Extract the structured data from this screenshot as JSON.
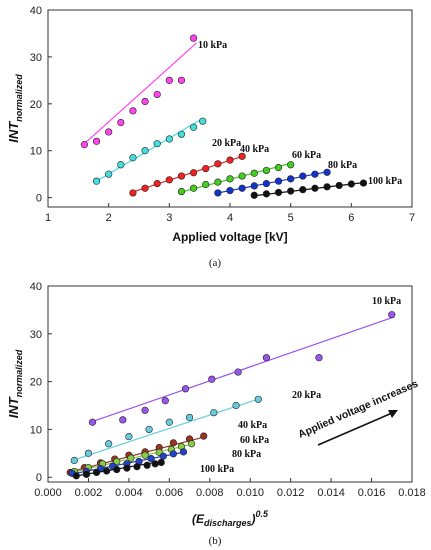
{
  "chart_data": [
    {
      "type": "scatter",
      "caption": "(a)",
      "xlabel": "Applied voltage [kV]",
      "ylabel_main": "INT",
      "ylabel_sub": "normalized",
      "xlim": [
        1,
        7
      ],
      "ylim": [
        -2,
        40
      ],
      "xticks": [
        "1",
        "2",
        "3",
        "4",
        "5",
        "6",
        "7"
      ],
      "yticks": [
        "0",
        "10",
        "20",
        "30",
        "40"
      ],
      "series": [
        {
          "name": "10 kPa",
          "color": "#ff44ee",
          "fit": [
            [
              1.6,
              11.5
            ],
            [
              3.45,
              33
            ]
          ],
          "x": [
            1.6,
            1.8,
            2.0,
            2.2,
            2.4,
            2.6,
            2.8,
            3.0,
            3.2,
            3.4
          ],
          "y": [
            11.3,
            12,
            14,
            16,
            18.5,
            20.5,
            22,
            25,
            25,
            34
          ]
        },
        {
          "name": "20 kPa",
          "color": "#44dddd",
          "fit": [
            [
              1.8,
              3.5
            ],
            [
              3.5,
              16.5
            ]
          ],
          "x": [
            1.8,
            2.0,
            2.2,
            2.4,
            2.6,
            2.8,
            3.0,
            3.2,
            3.4,
            3.55
          ],
          "y": [
            3.5,
            5,
            7,
            8.5,
            10,
            11.5,
            12.5,
            13.5,
            15,
            16.3
          ]
        },
        {
          "name": "40 kPa",
          "color": "#ee2222",
          "fit": [
            [
              2.35,
              1
            ],
            [
              4.25,
              9
            ]
          ],
          "x": [
            2.4,
            2.6,
            2.8,
            3.0,
            3.2,
            3.4,
            3.6,
            3.8,
            4.0,
            4.2
          ],
          "y": [
            1,
            2,
            3,
            3.8,
            4.6,
            5.3,
            6.2,
            7.2,
            8,
            8.8
          ]
        },
        {
          "name": "60 kPa",
          "color": "#44cc22",
          "fit": [
            [
              3.2,
              1.2
            ],
            [
              5.0,
              7.3
            ]
          ],
          "x": [
            3.2,
            3.4,
            3.6,
            3.8,
            4.0,
            4.2,
            4.4,
            4.6,
            4.8,
            5.0
          ],
          "y": [
            1.3,
            2,
            2.8,
            3.3,
            4,
            4.6,
            5.2,
            5.8,
            6.4,
            7
          ]
        },
        {
          "name": "80 kPa",
          "color": "#1133cc",
          "fit": [
            [
              3.8,
              1
            ],
            [
              5.6,
              5.5
            ]
          ],
          "x": [
            3.8,
            4.0,
            4.2,
            4.4,
            4.6,
            4.8,
            5.0,
            5.2,
            5.4,
            5.6
          ],
          "y": [
            1,
            1.5,
            2,
            2.5,
            3,
            3.5,
            4,
            4.6,
            5,
            5.4
          ]
        },
        {
          "name": "100 kPa",
          "color": "#111111",
          "fit": [
            [
              4.4,
              0.4
            ],
            [
              6.2,
              3.2
            ]
          ],
          "x": [
            4.4,
            4.6,
            4.8,
            5.0,
            5.2,
            5.4,
            5.6,
            5.8,
            6.0,
            6.2
          ],
          "y": [
            0.5,
            0.8,
            1.1,
            1.4,
            1.7,
            2,
            2.3,
            2.6,
            2.9,
            3.1
          ]
        }
      ]
    },
    {
      "type": "scatter",
      "caption": "(b)",
      "xlabel_main": "(E",
      "xlabel_sub": "discharges",
      "xlabel_close": ")",
      "xlabel_sup": "0.5",
      "ylabel_main": "INT",
      "ylabel_sub": "normalized",
      "annotation": "Applied voltage increases",
      "xlim": [
        0,
        0.018
      ],
      "ylim": [
        -1,
        40
      ],
      "xticks": [
        "0.000",
        "0.002",
        "0.004",
        "0.006",
        "0.008",
        "0.010",
        "0.012",
        "0.014",
        "0.016",
        "0.018"
      ],
      "yticks": [
        "0",
        "10",
        "20",
        "30",
        "40"
      ],
      "series": [
        {
          "name": "10 kPa",
          "color": "#9955ee",
          "fit": [
            [
              0.0021,
              11.5
            ],
            [
              0.0171,
              33.5
            ]
          ],
          "x": [
            0.0022,
            0.0037,
            0.0048,
            0.0058,
            0.0068,
            0.0081,
            0.0094,
            0.0108,
            0.0134,
            0.017
          ],
          "y": [
            11.5,
            12,
            14,
            16,
            18.5,
            20.5,
            22,
            25,
            25,
            34
          ]
        },
        {
          "name": "20 kPa",
          "color": "#66ccdd",
          "fit": [
            [
              0.0012,
              3.5
            ],
            [
              0.0105,
              16.5
            ]
          ],
          "x": [
            0.0013,
            0.002,
            0.003,
            0.004,
            0.005,
            0.006,
            0.007,
            0.0082,
            0.0093,
            0.0104
          ],
          "y": [
            3.5,
            5,
            7,
            8.5,
            10,
            11.5,
            12.5,
            13.5,
            15,
            16.3
          ]
        },
        {
          "name": "40 kPa",
          "color": "#993322",
          "fit": [
            [
              0.001,
              1
            ],
            [
              0.0078,
              8.5
            ]
          ],
          "x": [
            0.0011,
            0.0018,
            0.0026,
            0.0033,
            0.004,
            0.0048,
            0.0055,
            0.0062,
            0.007,
            0.0077
          ],
          "y": [
            1,
            2,
            3,
            3.8,
            4.6,
            5.3,
            6.2,
            7.2,
            8,
            8.6
          ]
        },
        {
          "name": "60 kPa",
          "color": "#88cc44",
          "fit": [
            [
              0.0012,
              1
            ],
            [
              0.0072,
              7
            ]
          ],
          "x": [
            0.0013,
            0.002,
            0.0027,
            0.0034,
            0.0041,
            0.0048,
            0.0055,
            0.0061,
            0.0066,
            0.0071
          ],
          "y": [
            1.2,
            2,
            2.8,
            3.3,
            4,
            4.6,
            5.2,
            5.8,
            6.4,
            7
          ]
        },
        {
          "name": "80 kPa",
          "color": "#2244cc",
          "fit": [
            [
              0.0011,
              0.6
            ],
            [
              0.0068,
              5.3
            ]
          ],
          "x": [
            0.0012,
            0.0019,
            0.0026,
            0.0032,
            0.0039,
            0.0045,
            0.0051,
            0.0057,
            0.0062,
            0.0067
          ],
          "y": [
            0.8,
            1.2,
            1.8,
            2.3,
            2.8,
            3.3,
            3.9,
            4.4,
            4.9,
            5.3
          ]
        },
        {
          "name": "100 kPa",
          "color": "#111111",
          "fit": [
            [
              0.0013,
              0.2
            ],
            [
              0.0056,
              3.3
            ]
          ],
          "x": [
            0.0014,
            0.0019,
            0.0024,
            0.0029,
            0.0034,
            0.0039,
            0.0044,
            0.0049,
            0.0053,
            0.0056
          ],
          "y": [
            0.3,
            0.6,
            1,
            1.3,
            1.6,
            1.9,
            2.2,
            2.5,
            2.8,
            3.1
          ]
        }
      ]
    }
  ]
}
